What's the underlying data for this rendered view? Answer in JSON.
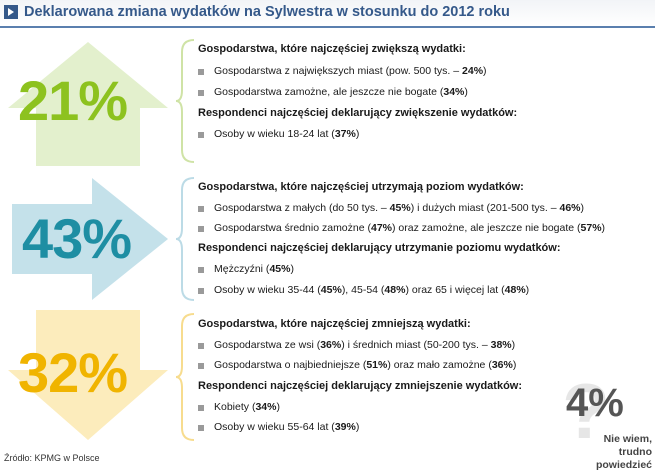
{
  "title": "Deklarowana zmiana wydatków na Sylwestra w stosunku do 2012 roku",
  "colors": {
    "increase": "#8dc21f",
    "keep": "#1e8ea3",
    "decrease": "#f0b400",
    "unknown": "#555555",
    "title": "#35598a"
  },
  "chart_data": {
    "type": "table",
    "title": "Deklarowana zmiana wydatków na Sylwestra w stosunku do 2012 roku",
    "categories": [
      "increase",
      "keep",
      "decrease",
      "unknown"
    ],
    "values": [
      21,
      43,
      32,
      4
    ],
    "unit": "%"
  },
  "groups": [
    {
      "key": "increase",
      "percent_label": "21%",
      "arrow_icon": "arrow-up-icon",
      "households_heading": "Gospodarstwa, które najczęściej zwiększą wydatki:",
      "households": [
        [
          {
            "t": "Gospodarstwa z największych miast (pow. 500 tys. – "
          },
          {
            "t": "24%",
            "b": true
          },
          {
            "t": ")"
          }
        ],
        [
          {
            "t": "Gospodarstwa zamożne, ale jeszcze nie bogate ("
          },
          {
            "t": "34%",
            "b": true
          },
          {
            "t": ")"
          }
        ]
      ],
      "respondents_heading": "Respondenci najczęściej deklarujący zwiększenie wydatków:",
      "respondents": [
        [
          {
            "t": "Osoby w wieku 18-24 lat ("
          },
          {
            "t": "37%",
            "b": true
          },
          {
            "t": ")"
          }
        ]
      ]
    },
    {
      "key": "keep",
      "percent_label": "43%",
      "arrow_icon": "arrow-right-icon",
      "households_heading": "Gospodarstwa, które najczęściej utrzymają poziom wydatków:",
      "households": [
        [
          {
            "t": "Gospodarstwa z małych (do 50 tys. – "
          },
          {
            "t": "45%",
            "b": true
          },
          {
            "t": ") i dużych miast (201-500 tys. – "
          },
          {
            "t": "46%",
            "b": true
          },
          {
            "t": ")"
          }
        ],
        [
          {
            "t": "Gospodarstwa średnio zamożne ("
          },
          {
            "t": "47%",
            "b": true
          },
          {
            "t": ") oraz zamożne, ale jeszcze nie bogate ("
          },
          {
            "t": "57%",
            "b": true
          },
          {
            "t": ")"
          }
        ]
      ],
      "respondents_heading": "Respondenci najczęściej deklarujący utrzymanie poziomu wydatków:",
      "respondents": [
        [
          {
            "t": "Mężczyźni ("
          },
          {
            "t": "45%",
            "b": true
          },
          {
            "t": ")"
          }
        ],
        [
          {
            "t": "Osoby w wieku 35-44 ("
          },
          {
            "t": "45%",
            "b": true
          },
          {
            "t": "), 45-54 ("
          },
          {
            "t": "48%",
            "b": true
          },
          {
            "t": ") oraz 65 i więcej lat ("
          },
          {
            "t": "48%",
            "b": true
          },
          {
            "t": ")"
          }
        ]
      ]
    },
    {
      "key": "decrease",
      "percent_label": "32%",
      "arrow_icon": "arrow-down-icon",
      "households_heading": "Gospodarstwa, które najczęściej zmniejszą wydatki:",
      "households": [
        [
          {
            "t": "Gospodarstwa ze wsi ("
          },
          {
            "t": "36%",
            "b": true
          },
          {
            "t": ") i średnich miast (50-200 tys. – "
          },
          {
            "t": "38%",
            "b": true
          },
          {
            "t": ")"
          }
        ],
        [
          {
            "t": "Gospodarstwa o najbiedniejsze ("
          },
          {
            "t": "51%",
            "b": true
          },
          {
            "t": ") oraz mało zamożne ("
          },
          {
            "t": "36%",
            "b": true
          },
          {
            "t": ")"
          }
        ]
      ],
      "respondents_heading": "Respondenci najczęściej deklarujący zmniejszenie wydatków:",
      "respondents": [
        [
          {
            "t": "Kobiety ("
          },
          {
            "t": "34%",
            "b": true
          },
          {
            "t": ")"
          }
        ],
        [
          {
            "t": "Osoby w wieku 55-64 lat ("
          },
          {
            "t": "39%",
            "b": true
          },
          {
            "t": ")"
          }
        ]
      ]
    }
  ],
  "unknown": {
    "percent_label": "4%",
    "label_line1": "Nie wiem,",
    "label_line2": "trudno powiedzieć",
    "icon": "question-mark-icon"
  },
  "source": "Źródło: KPMG w Polsce"
}
